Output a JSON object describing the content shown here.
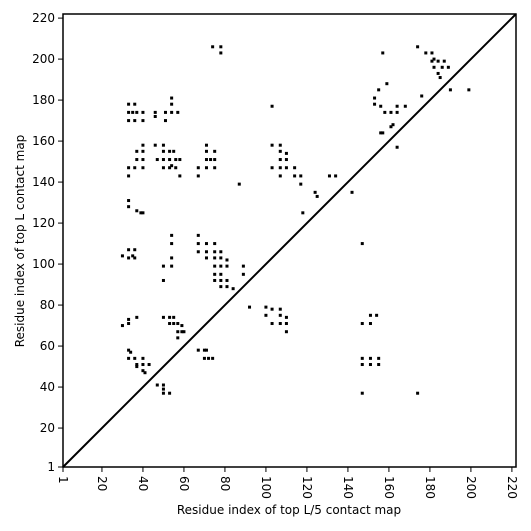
{
  "chart_data": {
    "type": "scatter",
    "xlabel": "Residue index of top L/5 contact map",
    "ylabel": "Residue index of top L contact map",
    "color": "#000000",
    "xlim": [
      1,
      222
    ],
    "ylim": [
      1,
      222
    ],
    "xticks": [
      1,
      20,
      40,
      60,
      80,
      100,
      120,
      140,
      160,
      180,
      200,
      220
    ],
    "yticks": [
      1,
      20,
      40,
      60,
      80,
      100,
      120,
      140,
      160,
      180,
      200,
      220
    ],
    "x": [
      33,
      36,
      33,
      35,
      37,
      40,
      33,
      36,
      40,
      46,
      46,
      51,
      54,
      57,
      54,
      54,
      51,
      33,
      33,
      36,
      40,
      37,
      40,
      37,
      40,
      40,
      46,
      50,
      50,
      53,
      55,
      50,
      53,
      56,
      50,
      53,
      56,
      47,
      58,
      58,
      54,
      71,
      71,
      75,
      71,
      73,
      75,
      67,
      71,
      75,
      67,
      74,
      78,
      78,
      87,
      103,
      103,
      107,
      107,
      107,
      110,
      110,
      103,
      107,
      110,
      114,
      114,
      107,
      117,
      117,
      118,
      124,
      125,
      131,
      134,
      142,
      33,
      33,
      37,
      40,
      39,
      30,
      33,
      36,
      33,
      36,
      35,
      54,
      54,
      50,
      54,
      54,
      50,
      67,
      67,
      71,
      75,
      67,
      71,
      75,
      78,
      71,
      75,
      78,
      81,
      75,
      78,
      81,
      75,
      78,
      75,
      78,
      81,
      78,
      81,
      84,
      89,
      89,
      92,
      100,
      100,
      103,
      107,
      107,
      103,
      107,
      110,
      110,
      110,
      30,
      33,
      33,
      37,
      50,
      53,
      55,
      53,
      55,
      57,
      59,
      57,
      59,
      60,
      57,
      33,
      34,
      33,
      36,
      40,
      37,
      40,
      43,
      37,
      40,
      41,
      47,
      50,
      50,
      50,
      53,
      67,
      70,
      71,
      70,
      72,
      74,
      147,
      147,
      151,
      151,
      154,
      147,
      151,
      155,
      147,
      151,
      155,
      147,
      174,
      157,
      153,
      153,
      156,
      155,
      159,
      158,
      161,
      164,
      164,
      168,
      161,
      162,
      164,
      156,
      157,
      174,
      178,
      181,
      182,
      181,
      184,
      187,
      182,
      186,
      184,
      185,
      189,
      190,
      199,
      176
    ],
    "values": [
      178,
      178,
      174,
      174,
      174,
      174,
      170,
      170,
      170,
      174,
      172,
      174,
      174,
      174,
      178,
      181,
      170,
      143,
      147,
      147,
      147,
      151,
      151,
      155,
      155,
      158,
      158,
      158,
      155,
      155,
      155,
      151,
      151,
      151,
      147,
      147,
      147,
      151,
      151,
      143,
      148,
      158,
      155,
      155,
      151,
      151,
      151,
      147,
      147,
      147,
      143,
      206,
      206,
      203,
      139,
      177,
      158,
      158,
      155,
      151,
      151,
      154,
      147,
      147,
      147,
      147,
      143,
      143,
      143,
      139,
      125,
      135,
      133,
      143,
      143,
      135,
      131,
      128,
      126,
      125,
      125,
      104,
      107,
      107,
      103,
      103,
      104,
      114,
      110,
      99,
      99,
      103,
      92,
      114,
      110,
      110,
      110,
      106,
      106,
      106,
      106,
      103,
      103,
      103,
      102,
      99,
      99,
      99,
      95,
      95,
      92,
      92,
      92,
      89,
      89,
      88,
      99,
      95,
      79,
      79,
      75,
      78,
      78,
      75,
      71,
      71,
      71,
      74,
      67,
      70,
      71,
      73,
      74,
      74,
      74,
      74,
      71,
      71,
      71,
      70,
      67,
      67,
      67,
      64,
      58,
      57,
      54,
      54,
      54,
      51,
      51,
      51,
      50,
      48,
      47,
      41,
      41,
      39,
      37,
      37,
      58,
      58,
      58,
      54,
      54,
      54,
      110,
      71,
      71,
      75,
      75,
      54,
      54,
      54,
      51,
      51,
      51,
      37,
      37,
      203,
      181,
      178,
      177,
      185,
      188,
      174,
      174,
      174,
      177,
      177,
      167,
      168,
      157,
      164,
      164,
      206,
      203,
      203,
      200,
      199,
      199,
      199,
      196,
      196,
      193,
      191,
      196,
      185,
      185,
      182
    ]
  }
}
